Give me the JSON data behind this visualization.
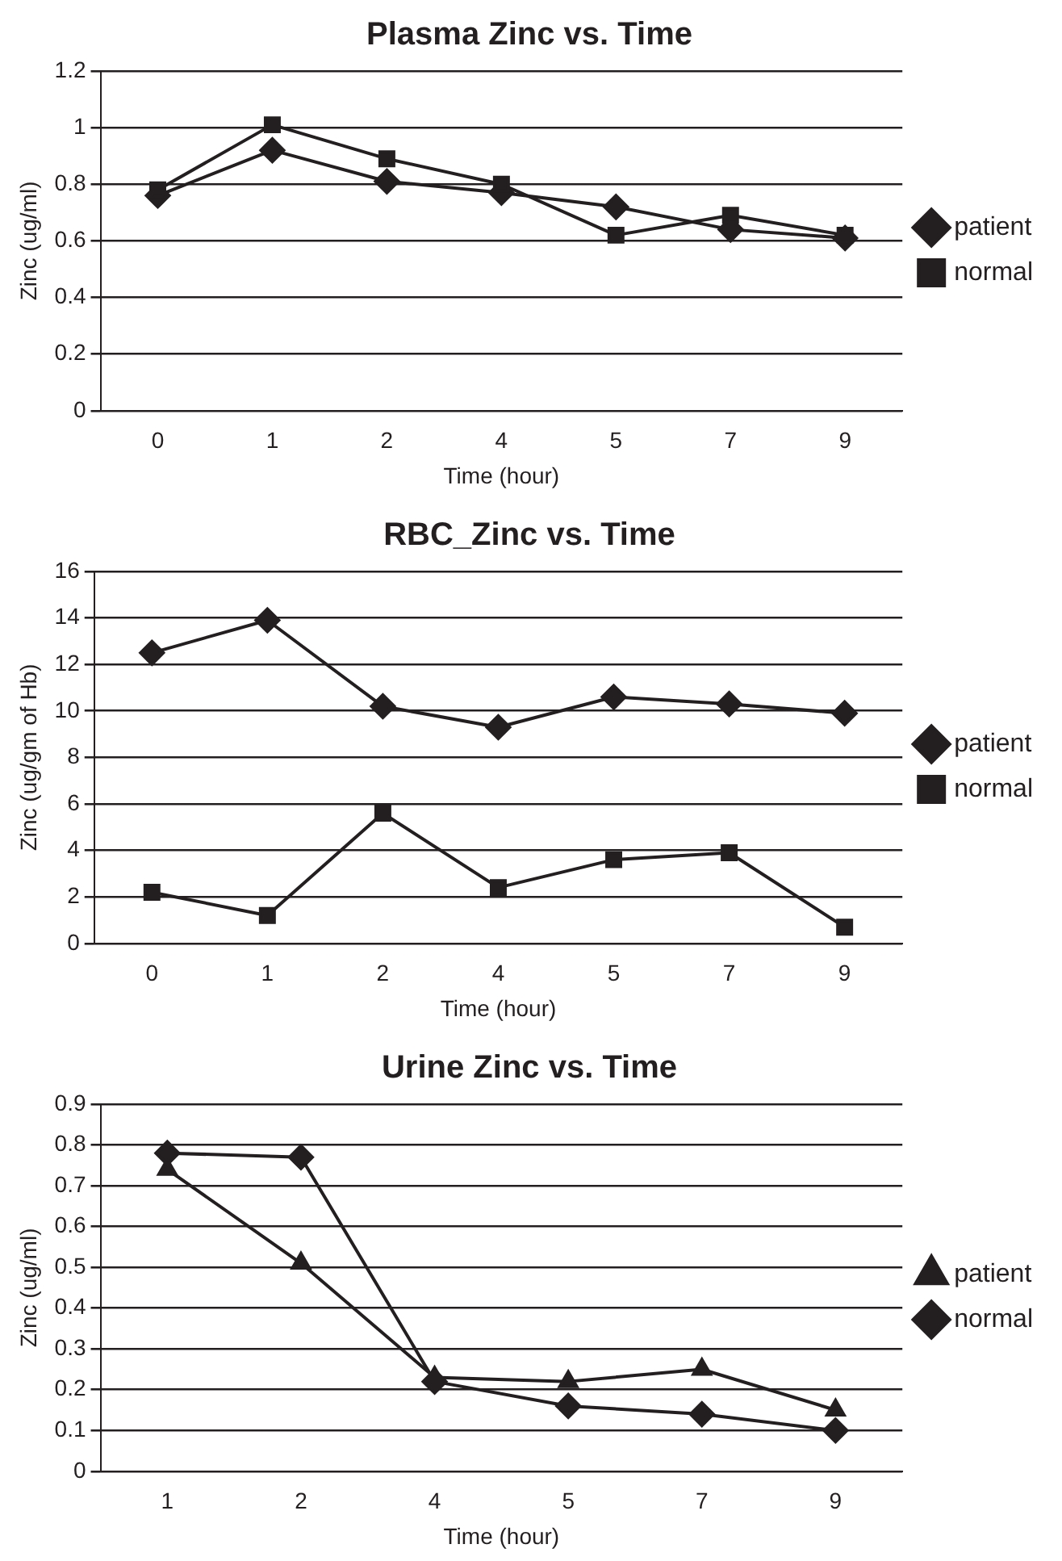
{
  "chart_data": [
    {
      "type": "line",
      "title": "Plasma Zinc vs. Time",
      "xlabel": "Time (hour)",
      "ylabel": "Zinc (ug/ml)",
      "categories": [
        "0",
        "1",
        "2",
        "4",
        "5",
        "7",
        "9"
      ],
      "series": [
        {
          "name": "patient",
          "color": "#231f20",
          "marker": "diamond",
          "values": [
            0.76,
            0.92,
            0.81,
            0.77,
            0.72,
            0.64,
            0.61
          ]
        },
        {
          "name": "normal",
          "color": "#231f20",
          "marker": "square",
          "values": [
            0.78,
            1.01,
            0.89,
            0.8,
            0.62,
            0.69,
            0.62
          ]
        }
      ],
      "ylim": [
        0,
        1.2
      ],
      "yticks": [
        0,
        0.2,
        0.4,
        0.6,
        0.8,
        1,
        1.2
      ],
      "grid": "y",
      "legend": "right"
    },
    {
      "type": "line",
      "title": "RBC_Zinc vs. Time",
      "xlabel": "Time (hour)",
      "ylabel": "Zinc (ug/gm of Hb)",
      "categories": [
        "0",
        "1",
        "2",
        "4",
        "5",
        "7",
        "9"
      ],
      "series": [
        {
          "name": "patient",
          "color": "#231f20",
          "marker": "diamond",
          "values": [
            12.5,
            13.9,
            10.2,
            9.3,
            10.6,
            10.3,
            9.9
          ]
        },
        {
          "name": "normal",
          "color": "#231f20",
          "marker": "square",
          "values": [
            2.2,
            1.2,
            5.6,
            2.4,
            3.6,
            3.9,
            0.7
          ]
        }
      ],
      "ylim": [
        0,
        16
      ],
      "yticks": [
        0,
        2,
        4,
        6,
        8,
        10,
        12,
        14,
        16
      ],
      "grid": "y",
      "legend": "right"
    },
    {
      "type": "line",
      "title": "Urine Zinc vs. Time",
      "xlabel": "Time (hour)",
      "ylabel": "Zinc (ug/ml)",
      "categories": [
        "1",
        "2",
        "4",
        "5",
        "7",
        "9"
      ],
      "series": [
        {
          "name": "patient",
          "color": "#231f20",
          "marker": "triangle",
          "values": [
            0.74,
            0.51,
            0.23,
            0.22,
            0.25,
            0.15
          ]
        },
        {
          "name": "normal",
          "color": "#231f20",
          "marker": "diamond",
          "values": [
            0.78,
            0.77,
            0.22,
            0.16,
            0.14,
            0.1
          ]
        }
      ],
      "ylim": [
        0,
        0.9
      ],
      "yticks": [
        0,
        0.1,
        0.2,
        0.3,
        0.4,
        0.5,
        0.6,
        0.7,
        0.8,
        0.9
      ],
      "grid": "y",
      "legend": "right"
    }
  ]
}
